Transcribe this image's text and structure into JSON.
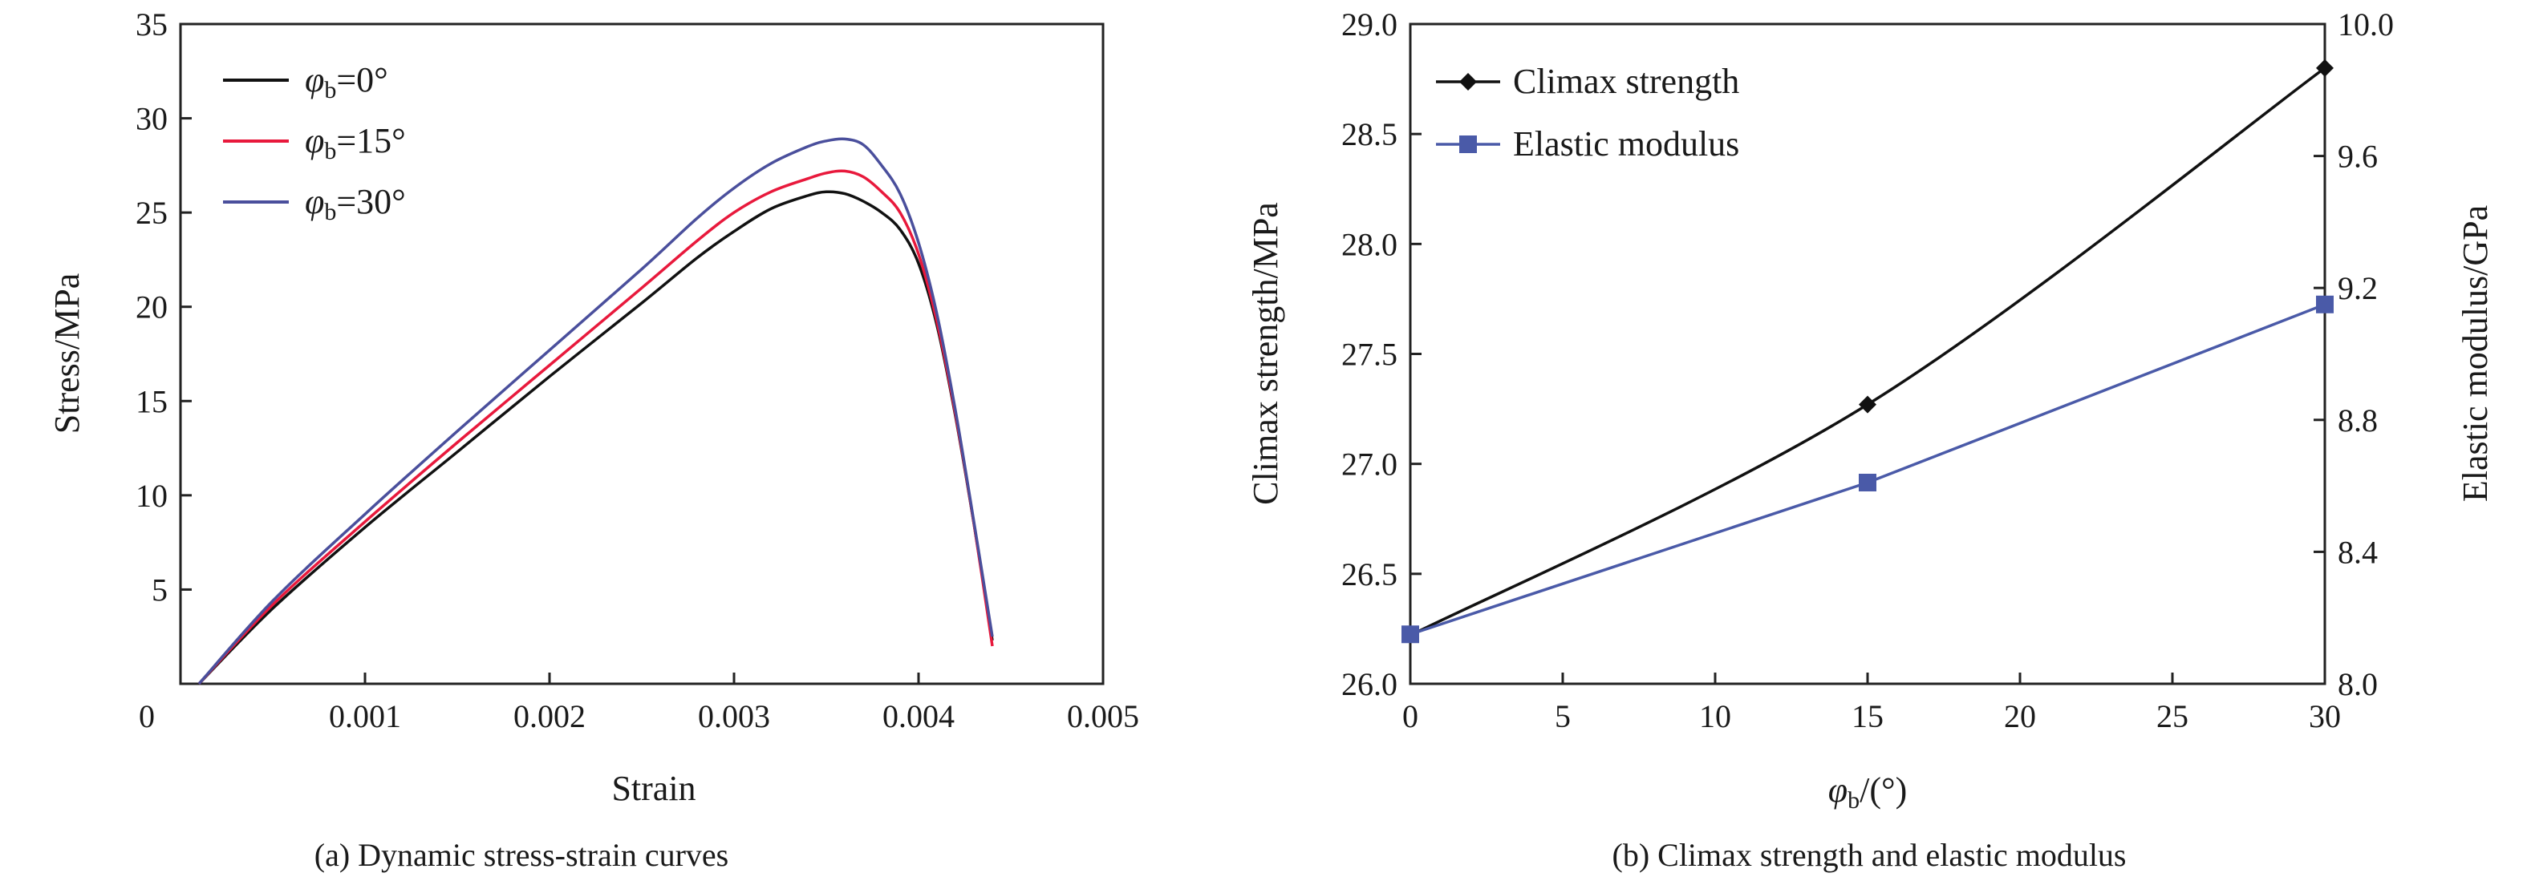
{
  "chart_data": [
    {
      "type": "line",
      "caption": "(a) Dynamic stress-strain curves",
      "xlabel": "Strain",
      "ylabel": "Stress/MPa",
      "xlim": [
        0,
        0.005
      ],
      "ylim": [
        0,
        35
      ],
      "xticks": [
        "0",
        "0.001",
        "0.002",
        "0.003",
        "0.004",
        "0.005"
      ],
      "yticks": [
        "5",
        "10",
        "15",
        "20",
        "25",
        "30",
        "35"
      ],
      "legend_position": "top-left",
      "series": [
        {
          "name": "φb=0°",
          "color": "#111111",
          "x": [
            0.0001,
            0.0005,
            0.001,
            0.0015,
            0.002,
            0.0025,
            0.0028,
            0.003,
            0.0032,
            0.0034,
            0.0035,
            0.0036,
            0.0037,
            0.0038,
            0.0039,
            0.004,
            0.0041,
            0.0042,
            0.0043,
            0.0044
          ],
          "y": [
            0,
            4,
            8.3,
            12.3,
            16.3,
            20.2,
            22.6,
            24,
            25.2,
            25.9,
            26.1,
            26,
            25.6,
            25,
            24.1,
            22.3,
            19,
            14.2,
            8.5,
            2.3
          ]
        },
        {
          "name": "φb=15°",
          "color": "#e8193c",
          "x": [
            0.0001,
            0.0005,
            0.001,
            0.0015,
            0.002,
            0.0025,
            0.0028,
            0.003,
            0.0032,
            0.0034,
            0.0035,
            0.0036,
            0.0037,
            0.0038,
            0.0039,
            0.004,
            0.0041,
            0.0042,
            0.0043,
            0.0044
          ],
          "y": [
            0,
            4.2,
            8.6,
            12.8,
            16.9,
            21,
            23.5,
            25,
            26.1,
            26.8,
            27.1,
            27.2,
            26.9,
            26.1,
            25,
            22.8,
            19.2,
            14.3,
            8.5,
            2
          ]
        },
        {
          "name": "φb=30°",
          "color": "#4a4f9c",
          "x": [
            0.0001,
            0.0005,
            0.001,
            0.0015,
            0.002,
            0.0025,
            0.0028,
            0.003,
            0.0032,
            0.0034,
            0.0035,
            0.0036,
            0.0037,
            0.0038,
            0.0039,
            0.004,
            0.0041,
            0.0042,
            0.0043,
            0.0044
          ],
          "y": [
            0,
            4.4,
            9,
            13.4,
            17.7,
            22,
            24.7,
            26.3,
            27.6,
            28.5,
            28.8,
            28.9,
            28.6,
            27.5,
            26,
            23.4,
            19.6,
            14.5,
            8.6,
            2.5
          ]
        }
      ]
    },
    {
      "type": "line",
      "caption": "(b) Climax strength and elastic modulus",
      "xlabel": "φb/(°)",
      "ylabel": "Climax strength/MPa",
      "ylabel_right": "Elastic modulus/GPa",
      "xlim": [
        0,
        30
      ],
      "ylim": [
        26.0,
        29.0
      ],
      "ylim_right": [
        8.0,
        10.0
      ],
      "xticks": [
        "0",
        "5",
        "10",
        "15",
        "20",
        "25",
        "30"
      ],
      "yticks": [
        "26.0",
        "26.5",
        "27.0",
        "27.5",
        "28.0",
        "28.5",
        "29.0"
      ],
      "yticks_right": [
        "8.0",
        "8.4",
        "8.8",
        "9.2",
        "9.6",
        "10.0"
      ],
      "legend_position": "top-left",
      "series": [
        {
          "name": "Climax strength",
          "axis": "left",
          "marker": "diamond",
          "color": "#111111",
          "x": [
            0,
            15,
            30
          ],
          "y": [
            26.22,
            27.27,
            28.8
          ]
        },
        {
          "name": "Elastic modulus",
          "axis": "right",
          "marker": "square",
          "color": "#4a5aa8",
          "x": [
            0,
            15,
            30
          ],
          "y": [
            8.15,
            8.61,
            9.15
          ]
        }
      ]
    }
  ]
}
